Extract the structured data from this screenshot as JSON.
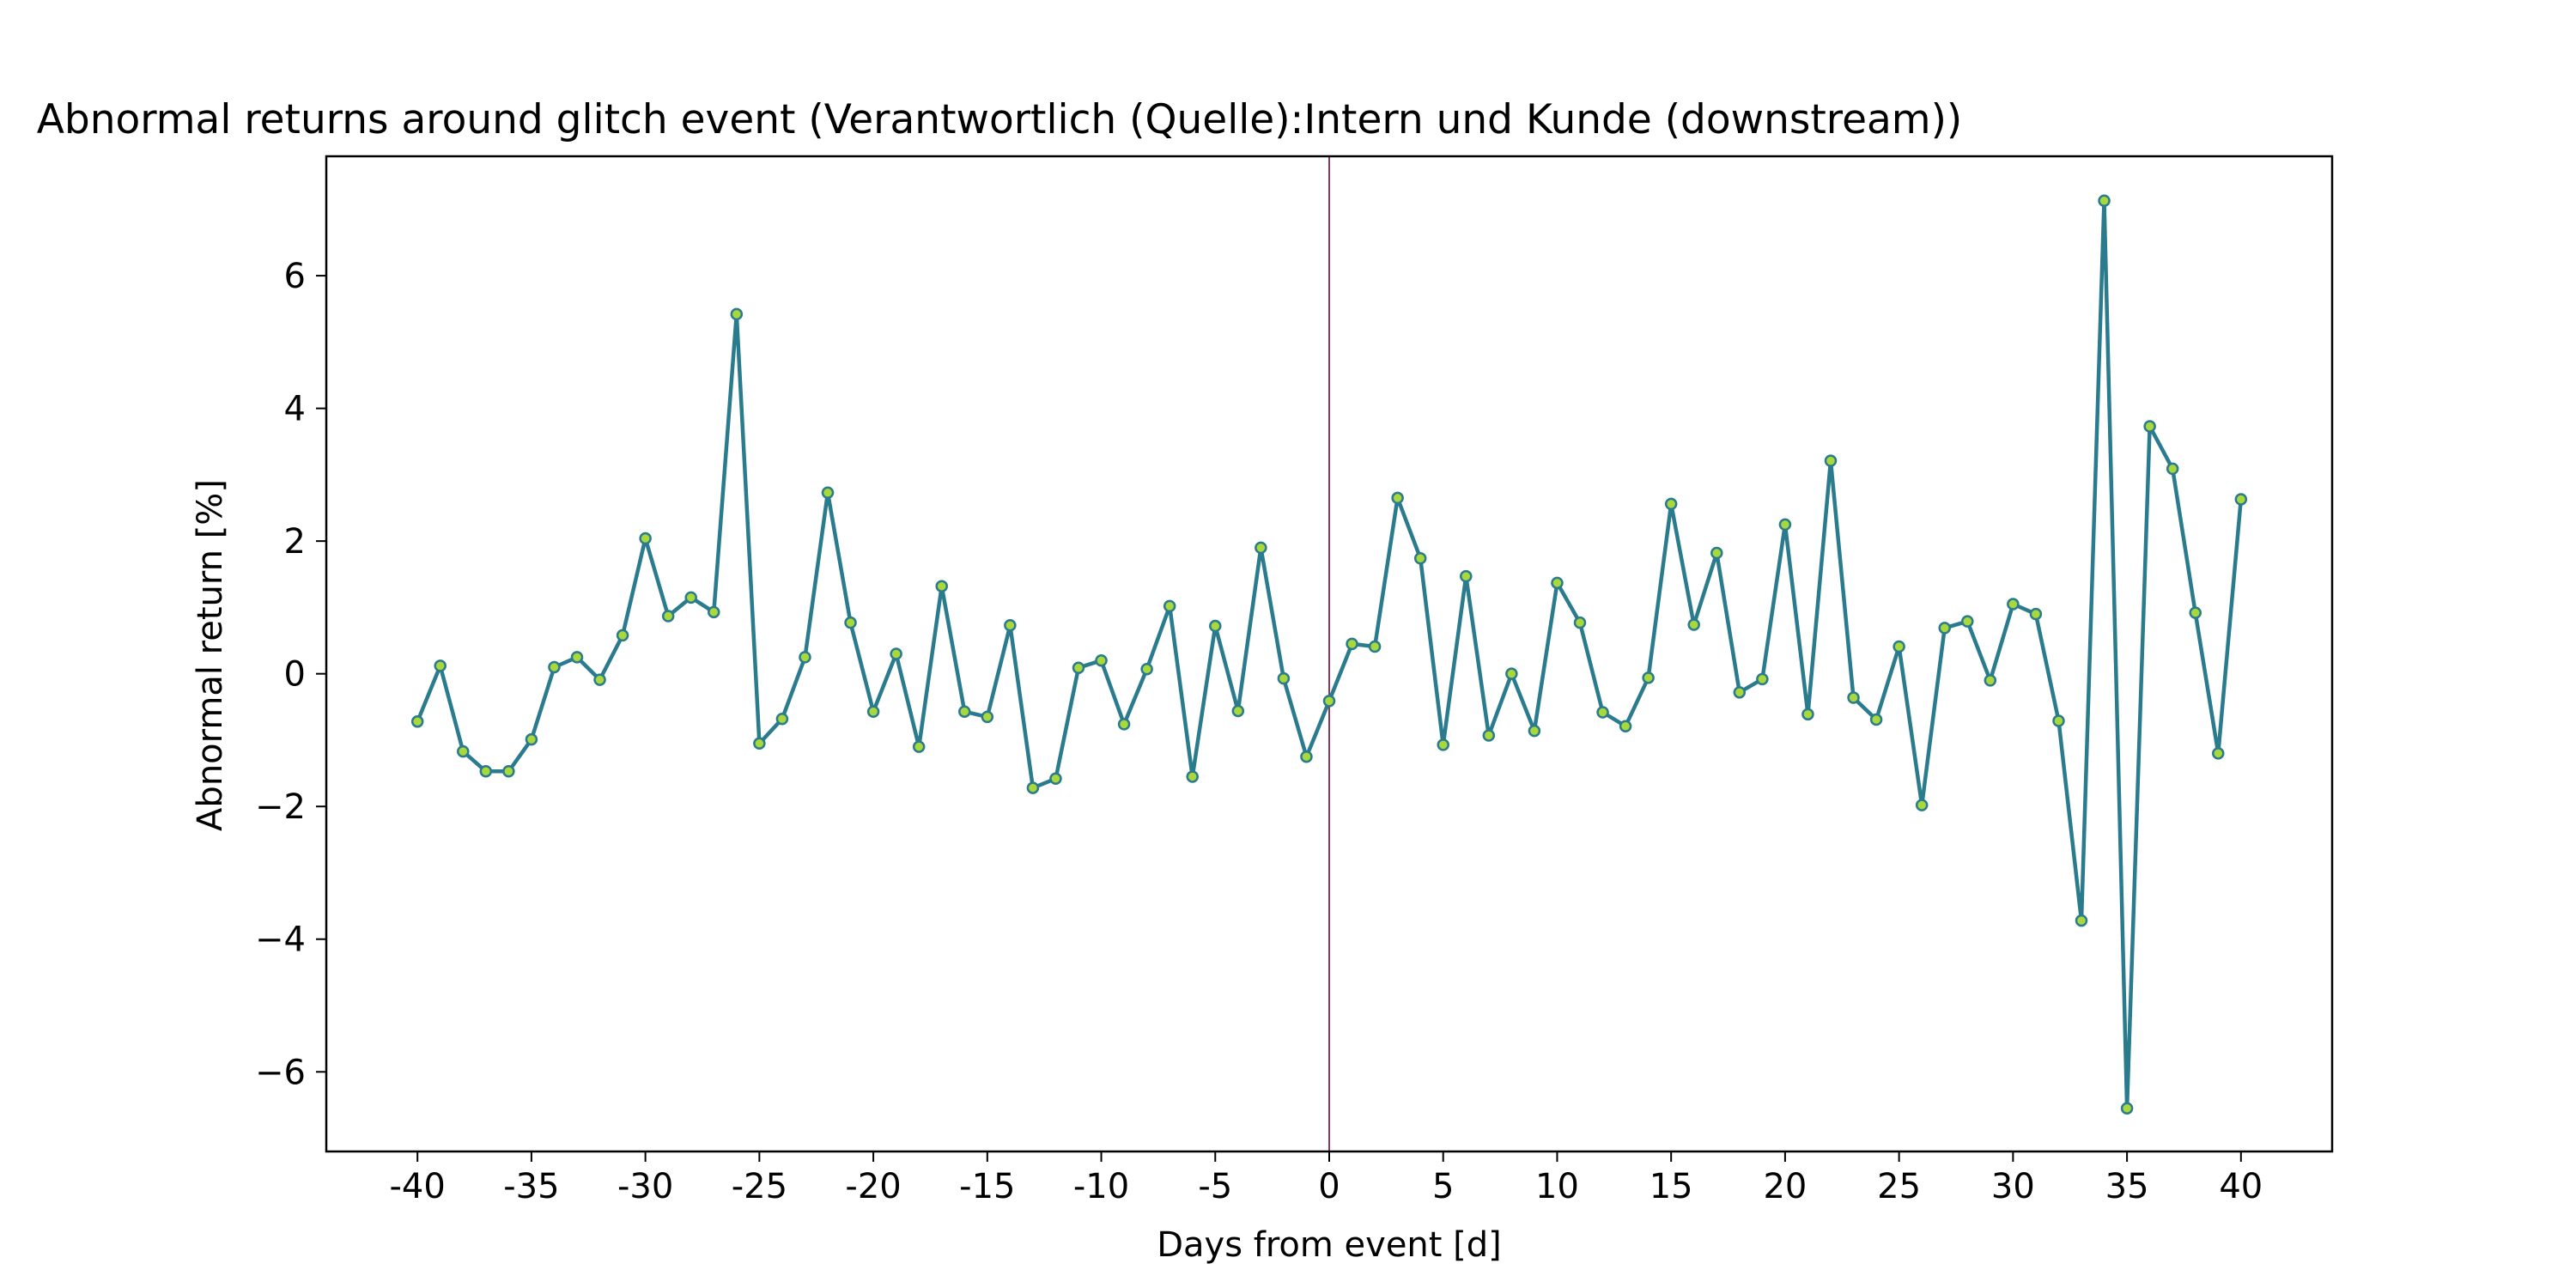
{
  "chart_data": {
    "type": "line",
    "title": "Abnormal returns around glitch event (Verantwortlich (Quelle):Intern und Kunde (downstream))",
    "xlabel": "Days from event [d]",
    "ylabel": "Abnormal return [%]",
    "xlim": [
      -44,
      44
    ],
    "ylim": [
      -7.2,
      7.8
    ],
    "grid": false,
    "event_line_x": 0,
    "x_ticks": [
      -40,
      -35,
      -30,
      -25,
      -20,
      -15,
      -10,
      -5,
      0,
      5,
      10,
      15,
      20,
      25,
      30,
      35,
      40
    ],
    "x_tick_labels": [
      "-40",
      "-35",
      "-30",
      "-25",
      "-20",
      "-15",
      "-10",
      "-5",
      "0",
      "5",
      "10",
      "15",
      "20",
      "25",
      "30",
      "35",
      "40"
    ],
    "y_ticks": [
      -6,
      -4,
      -2,
      0,
      2,
      4,
      6
    ],
    "y_tick_labels": [
      "−6",
      "−4",
      "−2",
      "0",
      "2",
      "4",
      "6"
    ],
    "colors": {
      "line": "#2a7b8e",
      "marker_fill": "#a8d83c",
      "marker_edge": "#2a7b8e",
      "event_line": "#8b3a62"
    },
    "series": [
      {
        "x": [
          -40,
          -39,
          -38,
          -37,
          -36,
          -35,
          -34,
          -33,
          -32,
          -31,
          -30,
          -29,
          -28,
          -27,
          -26,
          -25,
          -24,
          -23,
          -22,
          -21,
          -20,
          -19,
          -18,
          -17,
          -16,
          -15,
          -14,
          -13,
          -12,
          -11,
          -10,
          -9,
          -8,
          -7,
          -6,
          -5,
          -4,
          -3,
          -2,
          -1,
          0,
          1,
          2,
          3,
          4,
          5,
          6,
          7,
          8,
          9,
          10,
          11,
          12,
          13,
          14,
          15,
          16,
          17,
          18,
          19,
          20,
          21,
          22,
          23,
          24,
          25,
          26,
          27,
          28,
          29,
          30,
          31,
          32,
          33,
          34,
          35,
          36,
          37,
          38,
          39,
          40
        ],
        "values": [
          -0.72,
          0.12,
          -1.17,
          -1.47,
          -1.47,
          -0.99,
          0.1,
          0.25,
          -0.09,
          0.58,
          2.04,
          0.87,
          1.15,
          0.93,
          5.42,
          -1.05,
          -0.68,
          0.25,
          2.73,
          0.77,
          -0.57,
          0.3,
          -1.1,
          1.32,
          -0.57,
          -0.65,
          0.73,
          -1.72,
          -1.58,
          0.09,
          0.2,
          -0.76,
          0.07,
          1.02,
          -1.55,
          0.72,
          -0.56,
          1.9,
          -0.07,
          -1.25,
          -0.41,
          0.45,
          0.41,
          2.65,
          1.74,
          -1.07,
          1.47,
          -0.93,
          0.0,
          -0.86,
          1.37,
          0.77,
          -0.58,
          -0.79,
          -0.06,
          2.56,
          0.74,
          1.82,
          -0.28,
          -0.08,
          2.25,
          -0.61,
          3.21,
          -0.36,
          -0.69,
          0.41,
          -1.98,
          0.69,
          0.79,
          -0.1,
          1.05,
          0.9,
          -0.71,
          -3.72,
          7.13,
          -6.55,
          3.73,
          3.09,
          0.92,
          -1.2,
          2.63
        ]
      }
    ]
  }
}
